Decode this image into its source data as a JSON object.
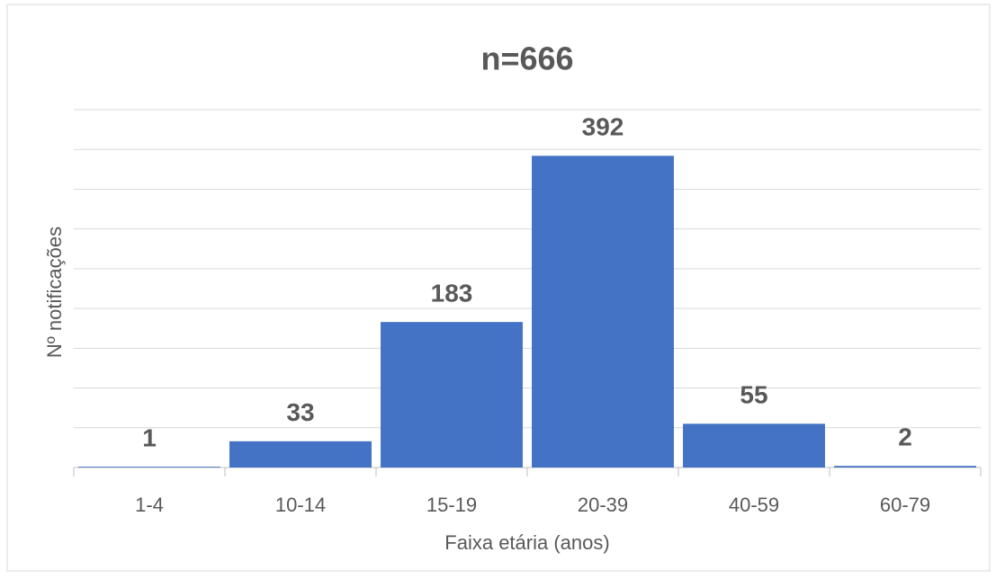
{
  "chart_data": {
    "type": "bar",
    "title": "n=666",
    "categories": [
      "1-4",
      "10-14",
      "15-19",
      "20-39",
      "40-59",
      "60-79"
    ],
    "values": [
      1,
      33,
      183,
      392,
      55,
      2
    ],
    "color": "#4472c4",
    "xlabel": "Faixa etária (anos)",
    "ylabel": "Nº notificações",
    "ylim": [
      0,
      450
    ],
    "yticks": [
      0,
      50,
      100,
      150,
      200,
      250,
      300,
      350,
      400,
      450
    ],
    "grid": true
  }
}
